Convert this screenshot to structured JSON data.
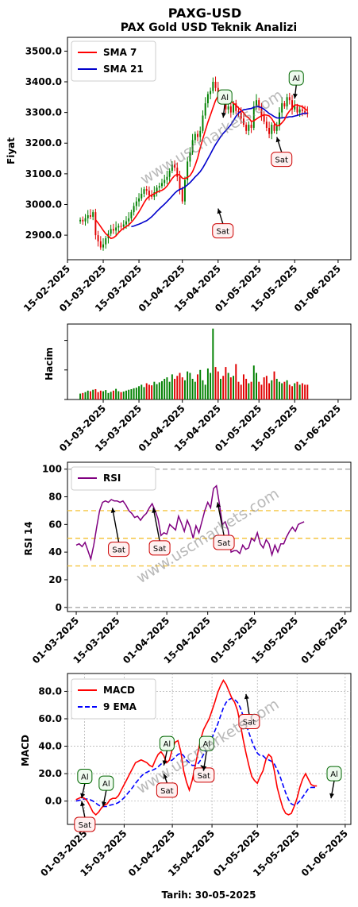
{
  "header": {
    "title": "PAXG-USD",
    "subtitle": "PAX Gold USD Teknik Analizi"
  },
  "footer": {
    "date_label": "Tarih: 30-05-2025"
  },
  "watermark": "www.uscmarkets.com",
  "colors": {
    "up": "#008000",
    "down": "#e00000",
    "sma7": "#ff0000",
    "sma21": "#0000cc",
    "rsi": "#800080",
    "macd": "#ff0000",
    "ema9": "#0000ff"
  },
  "chart_data": [
    {
      "type": "candlestick",
      "name": "price",
      "ylabel": "Fiyat",
      "ylim": [
        2820,
        3545
      ],
      "x_range": [
        "2025-02-15",
        "2025-06-06"
      ],
      "x_ticks": [
        "15-02-2025",
        "01-03-2025",
        "15-03-2025",
        "01-04-2025",
        "15-04-2025",
        "01-05-2025",
        "15-05-2025",
        "01-06-2025"
      ],
      "x_tick_dates": [
        "2025-02-15",
        "2025-03-01",
        "2025-03-15",
        "2025-04-01",
        "2025-04-15",
        "2025-05-01",
        "2025-05-15",
        "2025-06-01"
      ],
      "y_ticks": [
        "2900.0",
        "3000.0",
        "3100.0",
        "3200.0",
        "3300.0",
        "3400.0",
        "3500.0"
      ],
      "y_tick_values": [
        2900,
        3000,
        3100,
        3200,
        3300,
        3400,
        3500
      ],
      "start_date": "2025-02-20",
      "close": [
        2950,
        2945,
        2955,
        2965,
        2960,
        2975,
        2900,
        2880,
        2860,
        2870,
        2890,
        2905,
        2920,
        2915,
        2925,
        2930,
        2928,
        2935,
        2945,
        2955,
        2975,
        2995,
        3010,
        3020,
        3035,
        3050,
        3045,
        3030,
        3025,
        3040,
        3055,
        3060,
        3070,
        3080,
        3090,
        3110,
        3130,
        3120,
        3090,
        3050,
        3010,
        3080,
        3140,
        3170,
        3210,
        3230,
        3220,
        3240,
        3290,
        3330,
        3360,
        3370,
        3400,
        3380,
        3350,
        3360,
        3340,
        3310,
        3320,
        3300,
        3330,
        3305,
        3300,
        3280,
        3260,
        3240,
        3260,
        3250,
        3320,
        3340,
        3320,
        3290,
        3270,
        3250,
        3230,
        3260,
        3240,
        3255,
        3300,
        3330,
        3320,
        3350,
        3340,
        3310,
        3320,
        3300,
        3310,
        3305,
        3300,
        3295
      ],
      "volume": [
        0.2,
        0.22,
        0.25,
        0.3,
        0.28,
        0.33,
        0.35,
        0.25,
        0.3,
        0.28,
        0.32,
        0.22,
        0.26,
        0.3,
        0.36,
        0.28,
        0.25,
        0.27,
        0.3,
        0.33,
        0.35,
        0.38,
        0.4,
        0.45,
        0.5,
        0.42,
        0.55,
        0.5,
        0.48,
        0.6,
        0.52,
        0.58,
        0.62,
        0.7,
        0.75,
        0.6,
        0.85,
        0.7,
        0.8,
        0.9,
        0.75,
        0.65,
        0.95,
        0.9,
        0.7,
        0.6,
        0.85,
        1.0,
        0.65,
        0.5,
        1.05,
        0.9,
        2.4,
        1.1,
        0.95,
        0.7,
        0.8,
        1.1,
        0.9,
        0.75,
        0.8,
        1.2,
        0.6,
        0.5,
        0.85,
        0.7,
        0.55,
        0.6,
        1.15,
        0.9,
        0.6,
        0.5,
        0.75,
        0.8,
        0.55,
        0.65,
        0.95,
        0.7,
        0.6,
        0.55,
        0.6,
        0.65,
        0.5,
        0.45,
        0.55,
        0.6,
        0.5,
        0.55,
        0.5,
        0.5
      ],
      "series": [
        {
          "name": "SMA 7",
          "color": "#ff0000"
        },
        {
          "name": "SMA 21",
          "color": "#0000cc"
        }
      ],
      "annotations": [
        {
          "label": "Al",
          "date": "2025-04-17",
          "y": 3278
        },
        {
          "label": "Sat",
          "date": "2025-04-15",
          "y": 2992
        },
        {
          "label": "Sat",
          "date": "2025-05-08",
          "y": 3225
        },
        {
          "label": "Al",
          "date": "2025-05-15",
          "y": 3340
        }
      ],
      "legend": "upper left"
    },
    {
      "type": "bar",
      "name": "volume",
      "ylabel": "Hacim",
      "x_ticks": [
        "01-03-2025",
        "15-03-2025",
        "01-04-2025",
        "15-04-2025",
        "01-05-2025",
        "15-05-2025",
        "01-06-2025"
      ],
      "x_tick_dates": [
        "2025-03-01",
        "2025-03-15",
        "2025-04-01",
        "2025-04-15",
        "2025-05-01",
        "2025-05-15",
        "2025-06-01"
      ]
    },
    {
      "type": "line",
      "name": "rsi",
      "ylabel": "RSI 14",
      "ylim": [
        -3,
        105
      ],
      "x_range": [
        "2025-02-26",
        "2025-06-03"
      ],
      "x_ticks": [
        "01-03-2025",
        "15-03-2025",
        "01-04-2025",
        "15-04-2025",
        "01-05-2025",
        "15-05-2025",
        "01-06-2025"
      ],
      "x_tick_dates": [
        "2025-03-01",
        "2025-03-15",
        "2025-04-01",
        "2025-04-15",
        "2025-05-01",
        "2025-05-15",
        "2025-06-01"
      ],
      "y_ticks": [
        "0",
        "20",
        "40",
        "60",
        "80",
        "100"
      ],
      "y_tick_values": [
        0,
        20,
        40,
        60,
        80,
        100
      ],
      "series": [
        {
          "name": "RSI",
          "start_date": "2025-03-01",
          "values": [
            45,
            46,
            44,
            47,
            41,
            35,
            45,
            58,
            70,
            76,
            77,
            76,
            78,
            77,
            77,
            76,
            77,
            74,
            70,
            68,
            65,
            66,
            63,
            66,
            68,
            72,
            75,
            70,
            64,
            52,
            54,
            53,
            60,
            58,
            56,
            66,
            61,
            55,
            63,
            58,
            50,
            59,
            54,
            62,
            70,
            76,
            72,
            86,
            88,
            75,
            60,
            62,
            56,
            40,
            41,
            41,
            39,
            45,
            42,
            43,
            50,
            48,
            54,
            46,
            43,
            49,
            46,
            38,
            45,
            40,
            46,
            46,
            51,
            55,
            58,
            55,
            60,
            61,
            62
          ]
        }
      ],
      "levels": [
        0,
        30,
        50,
        70,
        100
      ],
      "annotations": [
        {
          "label": "Sat",
          "date": "2025-03-15",
          "y": 42
        },
        {
          "label": "Sat",
          "date": "2025-03-29",
          "y": 43
        },
        {
          "label": "Sat",
          "date": "2025-04-20",
          "y": 47
        }
      ],
      "legend": "upper left"
    },
    {
      "type": "line",
      "name": "macd",
      "ylabel": "MACD",
      "xlabel": "",
      "ylim": [
        -17,
        93
      ],
      "x_range": [
        "2025-02-23",
        "2025-06-03"
      ],
      "x_ticks": [
        "01-03-2025",
        "15-03-2025",
        "01-04-2025",
        "15-04-2025",
        "01-05-2025",
        "15-05-2025",
        "01-06-2025"
      ],
      "x_tick_dates": [
        "2025-03-01",
        "2025-03-15",
        "2025-04-01",
        "2025-04-15",
        "2025-05-01",
        "2025-05-15",
        "2025-06-01"
      ],
      "y_ticks": [
        "0.0",
        "20.0",
        "40.0",
        "60.0",
        "80.0"
      ],
      "y_tick_values": [
        0,
        20,
        40,
        60,
        80
      ],
      "series": [
        {
          "name": "MACD",
          "start_date": "2025-02-26",
          "values": [
            1,
            2,
            3,
            2,
            0,
            -4,
            -8,
            -10,
            -8,
            -5,
            -3,
            -2,
            1,
            2,
            2,
            4,
            8,
            12,
            16,
            20,
            24,
            28,
            29,
            30,
            29,
            28,
            26,
            25,
            30,
            34,
            36,
            33,
            28,
            30,
            38,
            43,
            44,
            36,
            22,
            14,
            8,
            15,
            25,
            35,
            45,
            52,
            56,
            60,
            66,
            72,
            79,
            84,
            88,
            85,
            80,
            75,
            72,
            66,
            56,
            45,
            35,
            26,
            18,
            15,
            13,
            18,
            22,
            30,
            34,
            32,
            22,
            10,
            2,
            -5,
            -9,
            -10,
            -9,
            -4,
            2,
            10,
            16,
            20,
            16,
            12,
            11,
            11
          ]
        },
        {
          "name": "9 EMA",
          "start_date": "2025-02-26",
          "values": [
            0,
            0.5,
            1,
            1.5,
            1.5,
            1,
            0,
            -1.5,
            -3,
            -4,
            -4,
            -4,
            -3,
            -2.5,
            -2,
            -1,
            0.5,
            2.5,
            5,
            7.5,
            10,
            13,
            15.5,
            18,
            20,
            21,
            22,
            22.5,
            23.5,
            25,
            27,
            28,
            28.5,
            29,
            30,
            32,
            34,
            35,
            33,
            30,
            28,
            26,
            26,
            27,
            30,
            34,
            38,
            42,
            46,
            51,
            56,
            62,
            68,
            72,
            74,
            75,
            74,
            72,
            68,
            62,
            56,
            50,
            44,
            39,
            35,
            33,
            33,
            31,
            30,
            29,
            27,
            23,
            18,
            12,
            6,
            1,
            -2,
            -3,
            -2,
            0,
            3,
            6,
            9,
            10,
            10,
            10
          ]
        }
      ],
      "annotations": [
        {
          "label": "Al",
          "date": "2025-02-28",
          "y": 18
        },
        {
          "label": "Sat",
          "date": "2025-02-28",
          "y": -17
        },
        {
          "label": "Al",
          "date": "2025-03-07",
          "y": 13
        },
        {
          "label": "Al",
          "date": "2025-03-29",
          "y": 42
        },
        {
          "label": "Sat",
          "date": "2025-03-29",
          "y": 8
        },
        {
          "label": "Sat",
          "date": "2025-04-11",
          "y": 19
        },
        {
          "label": "Al",
          "date": "2025-04-12",
          "y": 42
        },
        {
          "label": "Sat",
          "date": "2025-04-27",
          "y": 58
        },
        {
          "label": "Al",
          "date": "2025-05-27",
          "y": 20
        }
      ],
      "legend": "upper left"
    }
  ]
}
